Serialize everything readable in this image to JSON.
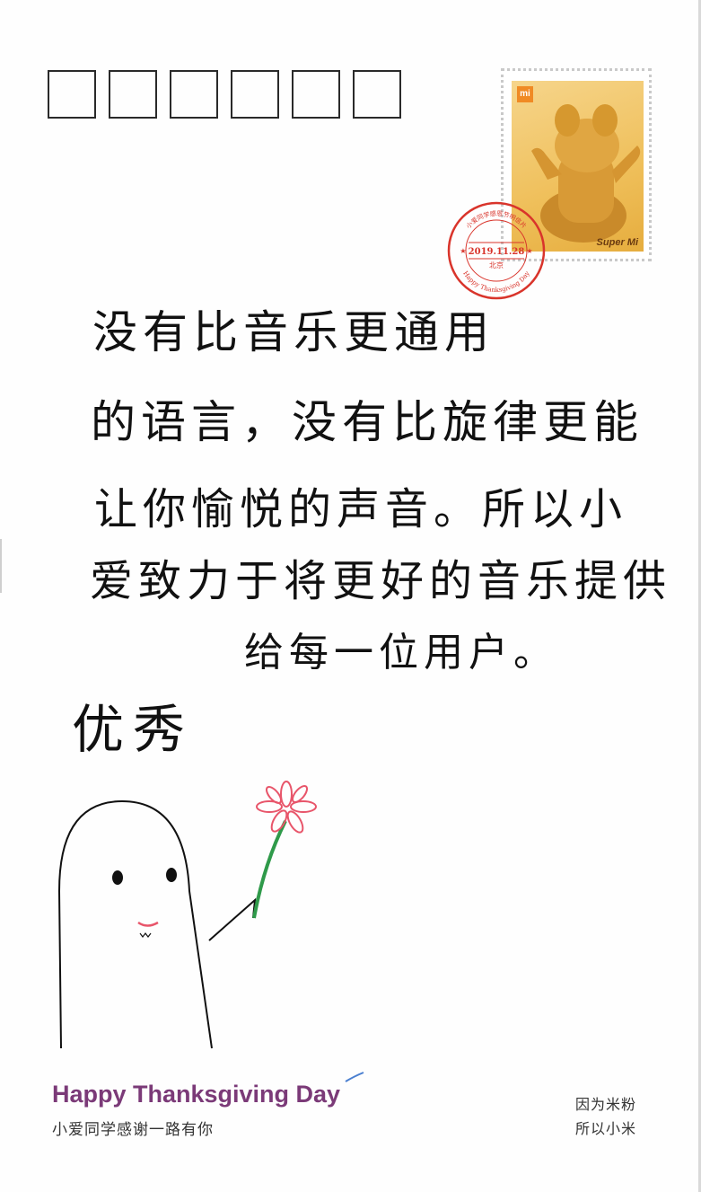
{
  "card": {
    "stamp": {
      "logo_text": "mi",
      "brand_text": "Super Mi"
    },
    "postmark": {
      "top_text": "小爱同学感恩节明信片",
      "date": "2019.11.28",
      "city": "北京",
      "bottom_text": "Happy Thanksgiving Day",
      "color": "#d9342b"
    },
    "message_lines": [
      "没有比音乐更通用",
      "的语言，没有比旋律更能",
      "让你愉悦的声音。所以小",
      "爱致力于将更好的音乐提供",
      "给每一位用户。"
    ],
    "signature": "优秀",
    "footer": {
      "title": "Happy Thanksgiving Day",
      "subtitle": "小爱同学感谢一路有你",
      "right_line1": "因为米粉",
      "right_line2": "所以小米"
    },
    "colors": {
      "footer_title": "#7b3a78",
      "flower": "#e8556a",
      "stem": "#2f9a4a",
      "stamp": "#efbf5a"
    }
  }
}
